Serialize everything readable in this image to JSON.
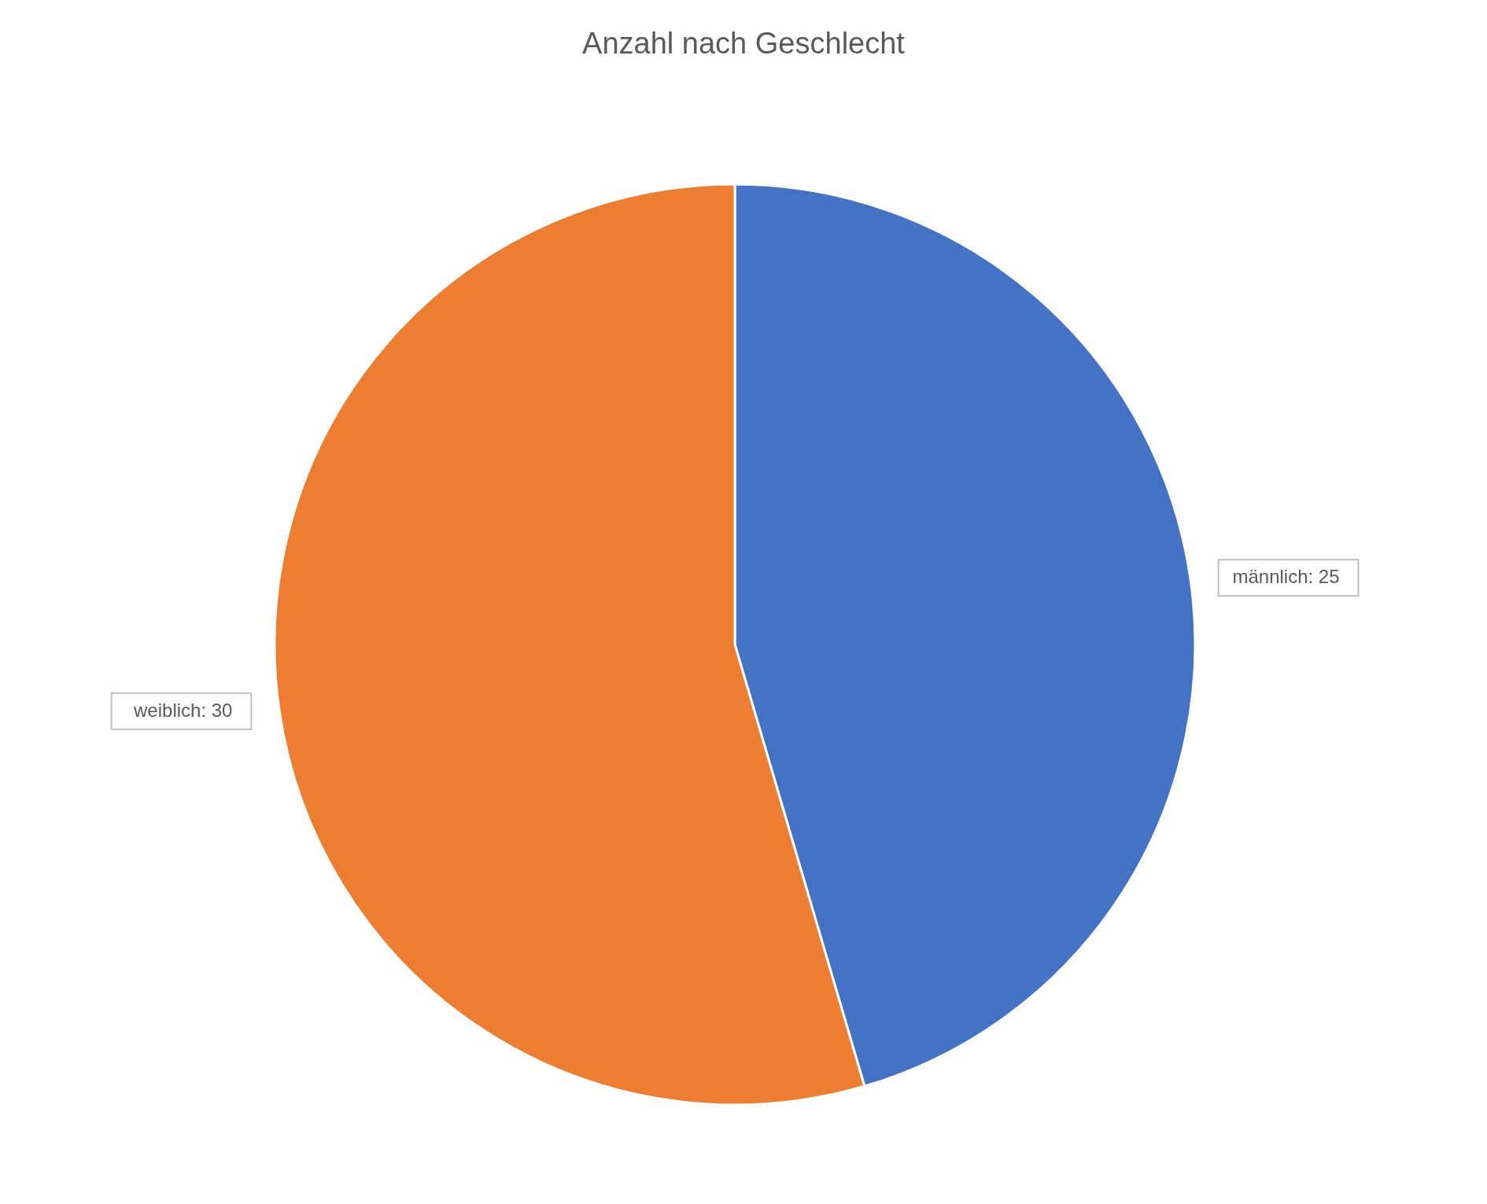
{
  "chart_data": {
    "type": "pie",
    "title": "Anzahl nach Geschlecht",
    "categories": [
      "männlich",
      "weiblich"
    ],
    "values": [
      25,
      30
    ],
    "colors": [
      "#4472c4",
      "#ed7d31"
    ],
    "value_labels": [
      ": 25",
      ": 30"
    ]
  }
}
